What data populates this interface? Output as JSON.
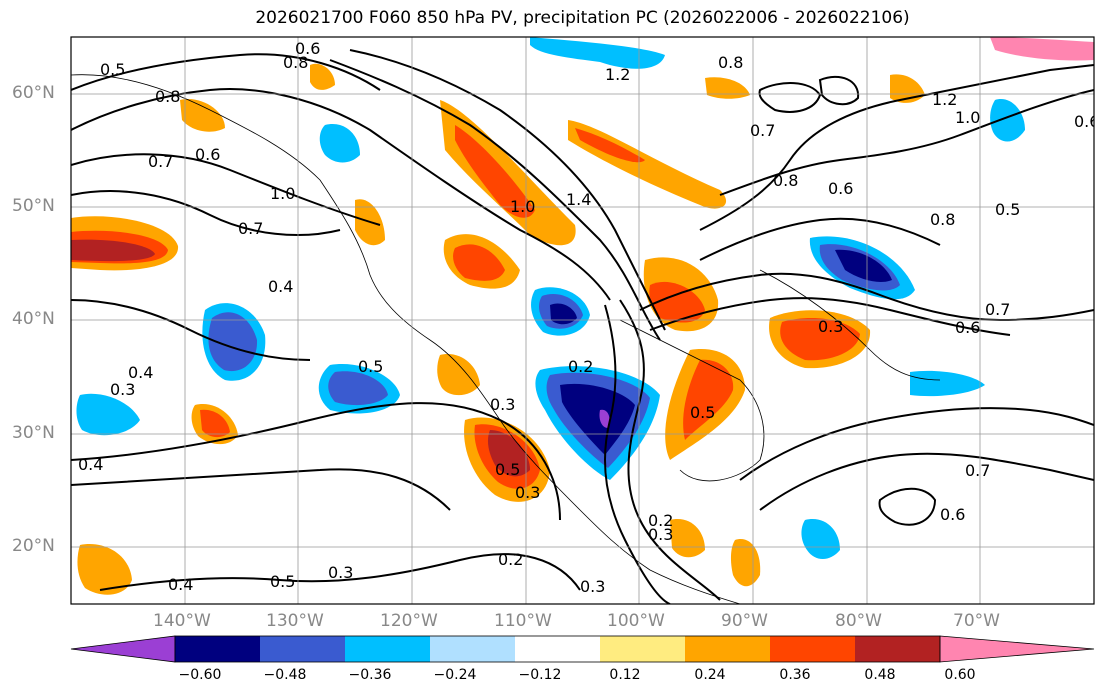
{
  "title": "2026021700 F060 850 hPa PV, precipitation PC (2026022006 - 2026022106)",
  "map": {
    "lon_range": [
      -150,
      -60
    ],
    "lat_range": [
      15,
      65
    ],
    "lat_ticks": [
      "20°N",
      "30°N",
      "40°N",
      "50°N",
      "60°N"
    ],
    "lat_values": [
      20,
      30,
      40,
      50,
      60
    ],
    "lon_ticks": [
      "140°W",
      "130°W",
      "120°W",
      "110°W",
      "100°W",
      "90°W",
      "80°W",
      "70°W"
    ],
    "lon_values": [
      -140,
      -130,
      -120,
      -110,
      -100,
      -90,
      -80,
      -70
    ]
  },
  "contour_labels": [
    "0.6",
    "0.8",
    "0.5",
    "1.2",
    "0.8",
    "0.8",
    "0.6",
    "1.2",
    "1.0",
    "0.7",
    "0.7",
    "0.6",
    "1.0",
    "0.8",
    "0.6",
    "1.4",
    "1.0",
    "0.8",
    "0.5",
    "0.7",
    "0.4",
    "0.7",
    "0.6",
    "0.3",
    "0.3",
    "0.4",
    "0.5",
    "0.2",
    "0.3",
    "0.5",
    "0.5",
    "0.4",
    "0.3",
    "0.7",
    "0.6",
    "0.2",
    "0.3",
    "0.2",
    "0.3",
    "0.5",
    "0.4",
    "0.3"
  ],
  "colorbar": {
    "ticks": [
      "−0.60",
      "−0.48",
      "−0.36",
      "−0.24",
      "−0.12",
      "0.12",
      "0.24",
      "0.36",
      "0.48",
      "0.60"
    ],
    "colors": [
      "#9b3fd4",
      "#00007f",
      "#3a5bd0",
      "#00bfff",
      "#b0e0ff",
      "#ffffff",
      "#ffec80",
      "#ffa500",
      "#ff4500",
      "#b22222",
      "#ff85b0"
    ]
  }
}
